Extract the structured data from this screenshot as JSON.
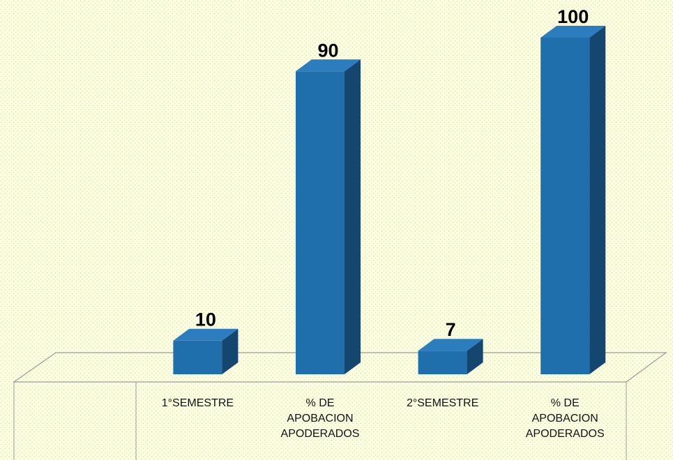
{
  "chart_data": {
    "type": "bar3d",
    "categories": [
      null,
      "1°SEMESTRE",
      "% DE APOBACION APODERADOS",
      "2°SEMESTRE",
      "% DE APOBACION APODERADOS"
    ],
    "values": [
      null,
      10,
      90,
      7,
      100
    ],
    "color": "#1f6fad"
  }
}
